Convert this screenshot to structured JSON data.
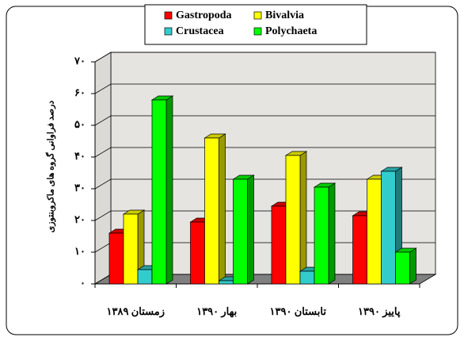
{
  "chart_data": {
    "type": "bar3d",
    "y_label": "درصد فراوانی گروه های ماکروبنتوزی",
    "categories": [
      "زمستان ۱۳۸۹",
      "بهار ۱۳۹۰",
      "تابستان ۱۳۹۰",
      "پاییز ۱۳۹۰"
    ],
    "series": [
      {
        "name": "Gastropoda",
        "color": "#ff0000",
        "values": [
          16,
          19.5,
          24.5,
          21.5
        ]
      },
      {
        "name": "Bivalvia",
        "color": "#ffff00",
        "values": [
          22,
          46,
          40.5,
          33
        ]
      },
      {
        "name": "Crustacea",
        "color": "#33cccc",
        "values": [
          4.5,
          1,
          4,
          35.5
        ]
      },
      {
        "name": "Polychaeta",
        "color": "#00ff00",
        "values": [
          58,
          33,
          30.5,
          10
        ]
      }
    ],
    "ylim": [
      0,
      70
    ],
    "yticks": [
      {
        "value": 0,
        "label": "۰"
      },
      {
        "value": 10,
        "label": "۱۰"
      },
      {
        "value": 20,
        "label": "۲۰"
      },
      {
        "value": 30,
        "label": "۳۰"
      },
      {
        "value": 40,
        "label": "۴۰"
      },
      {
        "value": 50,
        "label": "۵۰"
      },
      {
        "value": 60,
        "label": "۶۰"
      },
      {
        "value": 70,
        "label": "۷۰"
      }
    ],
    "grid": true
  }
}
